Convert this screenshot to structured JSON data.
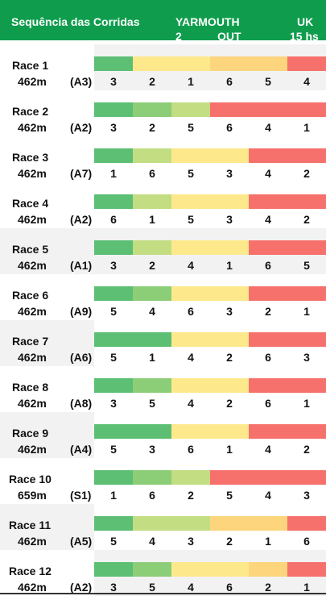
{
  "header": {
    "title": "Sequência das Corridas",
    "track": "YARMOUTH",
    "dogs": "2",
    "out": "OUT",
    "country": "UK",
    "time": "15 hs"
  },
  "colors": {
    "header_bg": "#0f9d4d",
    "dark_green": "#5cbf74",
    "mid_green": "#8ccd78",
    "light_green": "#c3dd83",
    "yellow": "#fde98b",
    "orange": "#fcd57d",
    "red": "#f6716c",
    "row_shade": "#f2f2f2"
  },
  "races": [
    {
      "name": "Race 1",
      "distance": "462m",
      "grade": "(A3)",
      "order": [
        "3",
        "2",
        "1",
        "6",
        "5",
        "4"
      ],
      "bar": [
        "dark_green",
        "yellow",
        "yellow",
        "orange",
        "orange",
        "red"
      ],
      "shade_left": false,
      "shade_right": true
    },
    {
      "name": "Race 2",
      "distance": "462m",
      "grade": "(A2)",
      "order": [
        "3",
        "2",
        "5",
        "6",
        "4",
        "1"
      ],
      "bar": [
        "dark_green",
        "mid_green",
        "light_green",
        "red",
        "red",
        "red"
      ],
      "shade_left": false,
      "shade_right": false
    },
    {
      "name": "Race 3",
      "distance": "462m",
      "grade": "(A7)",
      "order": [
        "1",
        "6",
        "5",
        "3",
        "4",
        "2"
      ],
      "bar": [
        "dark_green",
        "light_green",
        "yellow",
        "yellow",
        "red",
        "red"
      ],
      "shade_left": false,
      "shade_right": false
    },
    {
      "name": "Race 4",
      "distance": "462m",
      "grade": "(A2)",
      "order": [
        "6",
        "1",
        "5",
        "3",
        "4",
        "2"
      ],
      "bar": [
        "dark_green",
        "light_green",
        "yellow",
        "yellow",
        "red",
        "red"
      ],
      "shade_left": false,
      "shade_right": false
    },
    {
      "name": "Race 5",
      "distance": "462m",
      "grade": "(A1)",
      "order": [
        "3",
        "2",
        "4",
        "1",
        "6",
        "5"
      ],
      "bar": [
        "dark_green",
        "light_green",
        "yellow",
        "yellow",
        "red",
        "red"
      ],
      "shade_left": true,
      "shade_right": true
    },
    {
      "name": "Race 6",
      "distance": "462m",
      "grade": "(A9)",
      "order": [
        "5",
        "4",
        "6",
        "3",
        "2",
        "1"
      ],
      "bar": [
        "dark_green",
        "mid_green",
        "yellow",
        "yellow",
        "red",
        "red"
      ],
      "shade_left": false,
      "shade_right": false
    },
    {
      "name": "Race 7",
      "distance": "462m",
      "grade": "(A6)",
      "order": [
        "5",
        "1",
        "4",
        "2",
        "6",
        "3"
      ],
      "bar": [
        "dark_green",
        "dark_green",
        "yellow",
        "yellow",
        "red",
        "red"
      ],
      "shade_left": true,
      "shade_right": false
    },
    {
      "name": "Race 8",
      "distance": "462m",
      "grade": "(A8)",
      "order": [
        "3",
        "5",
        "4",
        "2",
        "6",
        "1"
      ],
      "bar": [
        "dark_green",
        "mid_green",
        "yellow",
        "yellow",
        "red",
        "red"
      ],
      "shade_left": false,
      "shade_right": false
    },
    {
      "name": "Race 9",
      "distance": "462m",
      "grade": "(A4)",
      "order": [
        "5",
        "3",
        "6",
        "1",
        "4",
        "2"
      ],
      "bar": [
        "dark_green",
        "dark_green",
        "yellow",
        "yellow",
        "red",
        "red"
      ],
      "shade_left": true,
      "shade_right": false
    },
    {
      "name": "Race 10",
      "distance": "659m",
      "grade": "(S1)",
      "order": [
        "1",
        "6",
        "2",
        "5",
        "4",
        "3"
      ],
      "bar": [
        "dark_green",
        "mid_green",
        "light_green",
        "red",
        "red",
        "red"
      ],
      "shade_left": false,
      "shade_right": false
    },
    {
      "name": "Race 11",
      "distance": "462m",
      "grade": "(A5)",
      "order": [
        "5",
        "4",
        "3",
        "2",
        "1",
        "6"
      ],
      "bar": [
        "dark_green",
        "light_green",
        "light_green",
        "orange",
        "orange",
        "red"
      ],
      "shade_left": true,
      "shade_right": false
    },
    {
      "name": "Race 12",
      "distance": "462m",
      "grade": "(A2)",
      "order": [
        "3",
        "5",
        "4",
        "6",
        "2",
        "1"
      ],
      "bar": [
        "dark_green",
        "mid_green",
        "yellow",
        "yellow",
        "orange",
        "red"
      ],
      "shade_left": false,
      "shade_right": true
    }
  ]
}
